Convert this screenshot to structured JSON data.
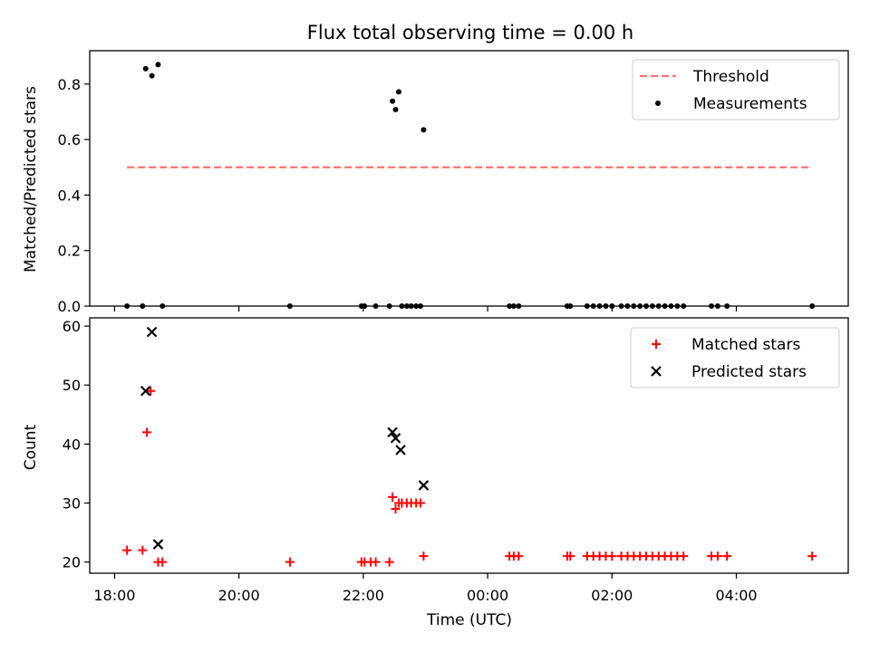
{
  "chart_data": [
    {
      "type": "scatter",
      "title": "Flux total observing time = 0.00 h",
      "xlabel": "",
      "ylabel": "Matched/Predicted stars",
      "ylim": [
        0,
        0.92
      ],
      "yticks": [
        0.0,
        0.2,
        0.4,
        0.6,
        0.8
      ],
      "ytick_labels": [
        "0.0",
        "0.2",
        "0.4",
        "0.6",
        "0.8"
      ],
      "xlim": [
        17.6,
        29.8
      ],
      "legend": "top-right",
      "series": [
        {
          "name": "Threshold",
          "kind": "line",
          "style": "dashed",
          "color": "#ff7070",
          "x": [
            18.2,
            29.2
          ],
          "y": [
            0.5,
            0.5
          ]
        },
        {
          "name": "Measurements",
          "kind": "points",
          "color": "#000000",
          "x": [
            18.2,
            18.45,
            18.5,
            18.6,
            18.7,
            18.77,
            20.82,
            21.97,
            22.02,
            22.2,
            22.42,
            22.47,
            22.52,
            22.57,
            22.62,
            22.7,
            22.77,
            22.85,
            22.92,
            22.97,
            24.35,
            24.42,
            24.5,
            25.28,
            25.33,
            25.6,
            25.7,
            25.8,
            25.9,
            26.0,
            26.15,
            26.25,
            26.35,
            26.45,
            26.55,
            26.65,
            26.75,
            26.85,
            26.95,
            27.05,
            27.15,
            27.6,
            27.7,
            27.85,
            29.22
          ],
          "y": [
            0,
            0,
            0.855,
            0.83,
            0.87,
            0,
            0,
            0,
            0,
            0,
            0,
            0.738,
            0.708,
            0.772,
            0,
            0,
            0,
            0,
            0,
            0.635,
            0,
            0,
            0,
            0,
            0,
            0,
            0,
            0,
            0,
            0,
            0,
            0,
            0,
            0,
            0,
            0,
            0,
            0,
            0,
            0,
            0,
            0,
            0,
            0,
            0
          ]
        }
      ]
    },
    {
      "type": "scatter",
      "title": "",
      "xlabel": "Time (UTC)",
      "ylabel": "Count",
      "ylim": [
        18.1,
        61.4
      ],
      "yticks": [
        20,
        30,
        40,
        50,
        60
      ],
      "ytick_labels": [
        "20",
        "30",
        "40",
        "50",
        "60"
      ],
      "xlim": [
        17.6,
        29.8
      ],
      "xticks": [
        18,
        20,
        22,
        24,
        26,
        28
      ],
      "xtick_labels": [
        "18:00",
        "20:00",
        "22:00",
        "00:00",
        "02:00",
        "04:00"
      ],
      "legend": "top-right",
      "series": [
        {
          "name": "Matched stars",
          "kind": "plus",
          "color": "#ff0000",
          "x": [
            18.2,
            18.45,
            18.52,
            18.58,
            18.7,
            18.77,
            20.82,
            21.97,
            22.02,
            22.12,
            22.2,
            22.42,
            22.47,
            22.52,
            22.57,
            22.62,
            22.7,
            22.77,
            22.85,
            22.92,
            22.97,
            24.35,
            24.42,
            24.5,
            25.28,
            25.33,
            25.6,
            25.7,
            25.8,
            25.9,
            26.0,
            26.15,
            26.25,
            26.35,
            26.45,
            26.55,
            26.65,
            26.75,
            26.85,
            26.95,
            27.05,
            27.15,
            27.6,
            27.7,
            27.85,
            29.22
          ],
          "y": [
            22,
            22,
            42,
            49,
            20,
            20,
            20,
            20,
            20,
            20,
            20,
            20,
            31,
            29,
            30,
            30,
            30,
            30,
            30,
            30,
            21,
            21,
            21,
            21,
            21,
            21,
            21,
            21,
            21,
            21,
            21,
            21,
            21,
            21,
            21,
            21,
            21,
            21,
            21,
            21,
            21,
            21,
            21,
            21,
            21,
            21
          ]
        },
        {
          "name": "Predicted stars",
          "kind": "cross",
          "color": "#000000",
          "x": [
            18.5,
            18.6,
            18.7,
            22.47,
            22.52,
            22.6,
            22.97
          ],
          "y": [
            49,
            59,
            23,
            42,
            41,
            39,
            33
          ]
        }
      ]
    }
  ]
}
